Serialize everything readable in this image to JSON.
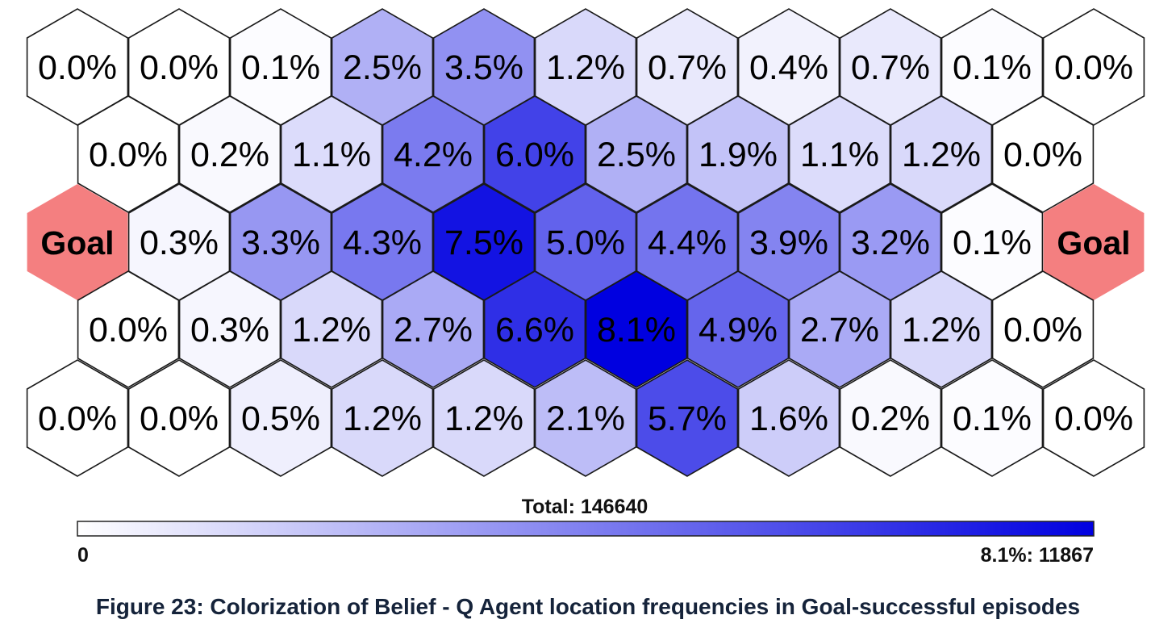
{
  "chart_data": {
    "type": "heatmap",
    "layout": "hexagonal",
    "rows": [
      [
        "0.0%",
        "0.0%",
        "0.1%",
        "2.5%",
        "3.5%",
        "1.2%",
        "0.7%",
        "0.4%",
        "0.7%",
        "0.1%",
        "0.0%"
      ],
      [
        "0.0%",
        "0.2%",
        "1.1%",
        "4.2%",
        "6.0%",
        "2.5%",
        "1.9%",
        "1.1%",
        "1.2%",
        "0.0%"
      ],
      [
        "Goal",
        "0.3%",
        "3.3%",
        "4.3%",
        "7.5%",
        "5.0%",
        "4.4%",
        "3.9%",
        "3.2%",
        "0.1%",
        "Goal"
      ],
      [
        "0.0%",
        "0.3%",
        "1.2%",
        "2.7%",
        "6.6%",
        "8.1%",
        "4.9%",
        "2.7%",
        "1.2%",
        "0.0%"
      ],
      [
        "0.0%",
        "0.0%",
        "0.5%",
        "1.2%",
        "1.2%",
        "2.1%",
        "5.7%",
        "1.6%",
        "0.2%",
        "0.1%",
        "0.0%"
      ]
    ],
    "max_value": 8.1,
    "colorbar": {
      "total_label": "Total: 146640",
      "min_label": "0",
      "max_label": "8.1%: 11867",
      "low_color": "#ffffff",
      "high_color": "#0000e0"
    },
    "goal_color": "#f47f80"
  },
  "caption": "Figure 23: Colorization of Belief - Q Agent location frequencies in Goal-successful episodes"
}
